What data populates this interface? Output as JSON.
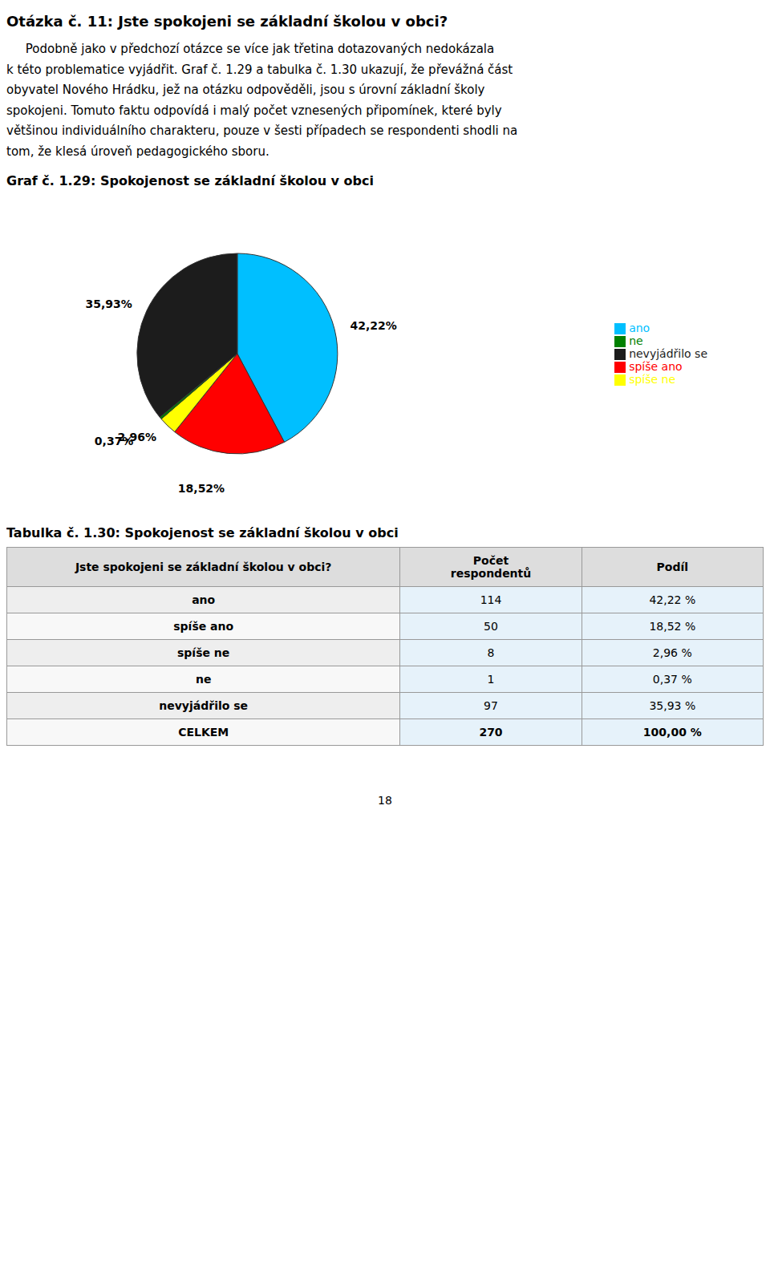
{
  "chart_data": [
    {
      "type": "pie",
      "title": "Graf č. 1.29: Spokojenost se základní školou v obci",
      "annotations": [
        "Otázka č. 11: Jste spokojeni se základní školou v obci?",
        "     Podobně jako v předchozí otázce se více jak třetina dotazovaných nedokázala",
        "k této problematice vyjádřit. Graf č. 1.29 a tabulka č. 1.30 ukazují, že převážná část",
        "obyvatel Nového Hrádku, jež na otázku odpověděli, jsou s úrovní základní školy",
        "spokojeni. Tomuto faktu odpovídá i malý počet vznesených připomínek, které byly",
        "většinou individuálního charakteru, pouze v šesti případech se respondenti shodli na",
        "tom, že klesá úroveň pedagogického sboru."
      ],
      "categories": [
        "ano",
        "spíše ano",
        "spíše ne",
        "ne",
        "nevyjádřilo se"
      ],
      "values": [
        42.22,
        18.52,
        2.96,
        0.37,
        35.93
      ],
      "value_labels": [
        "42,22%",
        "18,52%",
        "2,96%",
        "0,37%",
        "35,93%"
      ],
      "colors": [
        "#00BFFF",
        "#FF0000",
        "#FFFF00",
        "#008000",
        "#1C1C1C"
      ],
      "data_labels": true,
      "legend": "right"
    },
    {
      "type": "table",
      "title": "Tabulka č. 1.30: Spokojenost se základní školou v obci",
      "x_label": "Jste spokojeni se základní školou v obci?",
      "categories": [
        "ano",
        "spíše ano",
        "spíše ne",
        "ne",
        "nevyjádřilo se",
        "CELKEM"
      ],
      "series": [
        {
          "name": "Počet\nrespondentů",
          "values": [
            114,
            50,
            8,
            1,
            97,
            270
          ]
        },
        {
          "name": "Podíl",
          "values": [
            42.22,
            18.52,
            2.96,
            0.37,
            35.93,
            100.0
          ],
          "value_labels": [
            "42,22 %",
            "18,52 %",
            "2,96 %",
            "0,37 %",
            "35,93 %",
            "100,00 %"
          ]
        }
      ],
      "annotations": [
        "18"
      ]
    }
  ]
}
